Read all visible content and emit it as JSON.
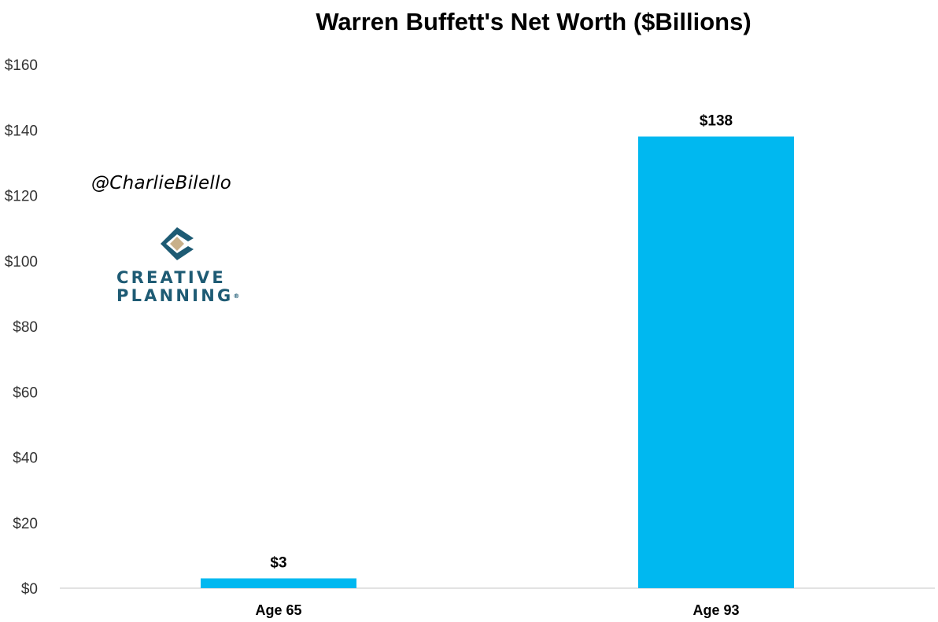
{
  "chart_data": {
    "type": "bar",
    "title": "Warren Buffett's Net Worth ($Billions)",
    "categories": [
      "Age 65",
      "Age 93"
    ],
    "values": [
      3,
      138
    ],
    "data_labels": [
      "$3",
      "$138"
    ],
    "y_ticks": [
      0,
      20,
      40,
      60,
      80,
      100,
      120,
      140,
      160
    ],
    "y_tick_labels": [
      "$0",
      "$20",
      "$40",
      "$60",
      "$80",
      "$100",
      "$120",
      "$140",
      "$160"
    ],
    "ylim": [
      0,
      160
    ],
    "xlabel": "",
    "ylabel": "",
    "grid": false,
    "legend": "none",
    "bar_color": "#00b8f0"
  },
  "watermark": {
    "handle": "@CharlieBilello"
  },
  "logo": {
    "line1": "CREATIVE",
    "line2": "PLANNING",
    "mark": "®",
    "primary_color": "#1e5b74",
    "accent_color": "#c8b08a"
  }
}
